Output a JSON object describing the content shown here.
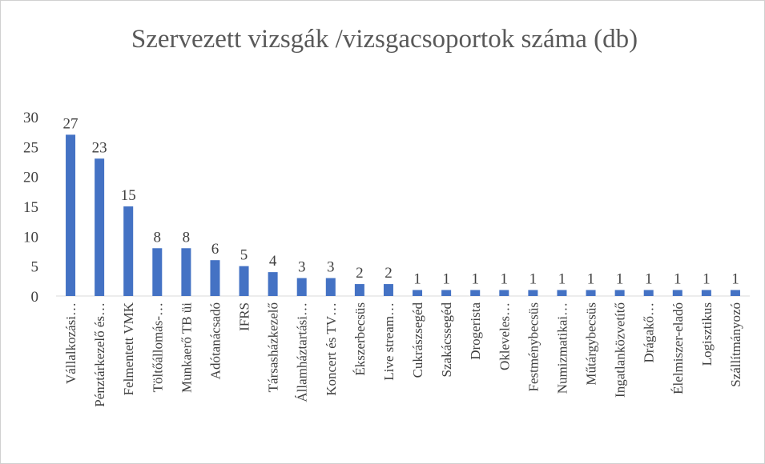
{
  "chart_data": {
    "type": "bar",
    "title": "Szervezett vizsgák /vizsgacsoportok száma (db)",
    "categories": [
      "Vállalkozási…",
      "Pénztárkezelő és…",
      "Felmentett VMK",
      "Töltőállomás-…",
      "Munkaerő TB üi",
      "Adótanácsadó",
      "IFRS",
      "Társasházkezelő",
      "Államháztartási…",
      "Koncert és TV…",
      "Ékszerbecsüs",
      "Live stream…",
      "Cukrászsegéd",
      "Szakácssegéd",
      "Drogerista",
      "Okleveles…",
      "Festménybecsüs",
      "Numizmatikai…",
      "Műtárgybecsüs",
      "Ingatlanközvetítő",
      "Drágakő…",
      "Élelmiszer-eladó",
      "Logisztikus",
      "Szállítmányozó"
    ],
    "values": [
      27,
      23,
      15,
      8,
      8,
      6,
      5,
      4,
      3,
      3,
      2,
      2,
      1,
      1,
      1,
      1,
      1,
      1,
      1,
      1,
      1,
      1,
      1,
      1
    ],
    "color": "#4472c4",
    "ylim": [
      0,
      30
    ],
    "yticks": [
      0,
      5,
      10,
      15,
      20,
      25,
      30
    ],
    "grid": false
  }
}
